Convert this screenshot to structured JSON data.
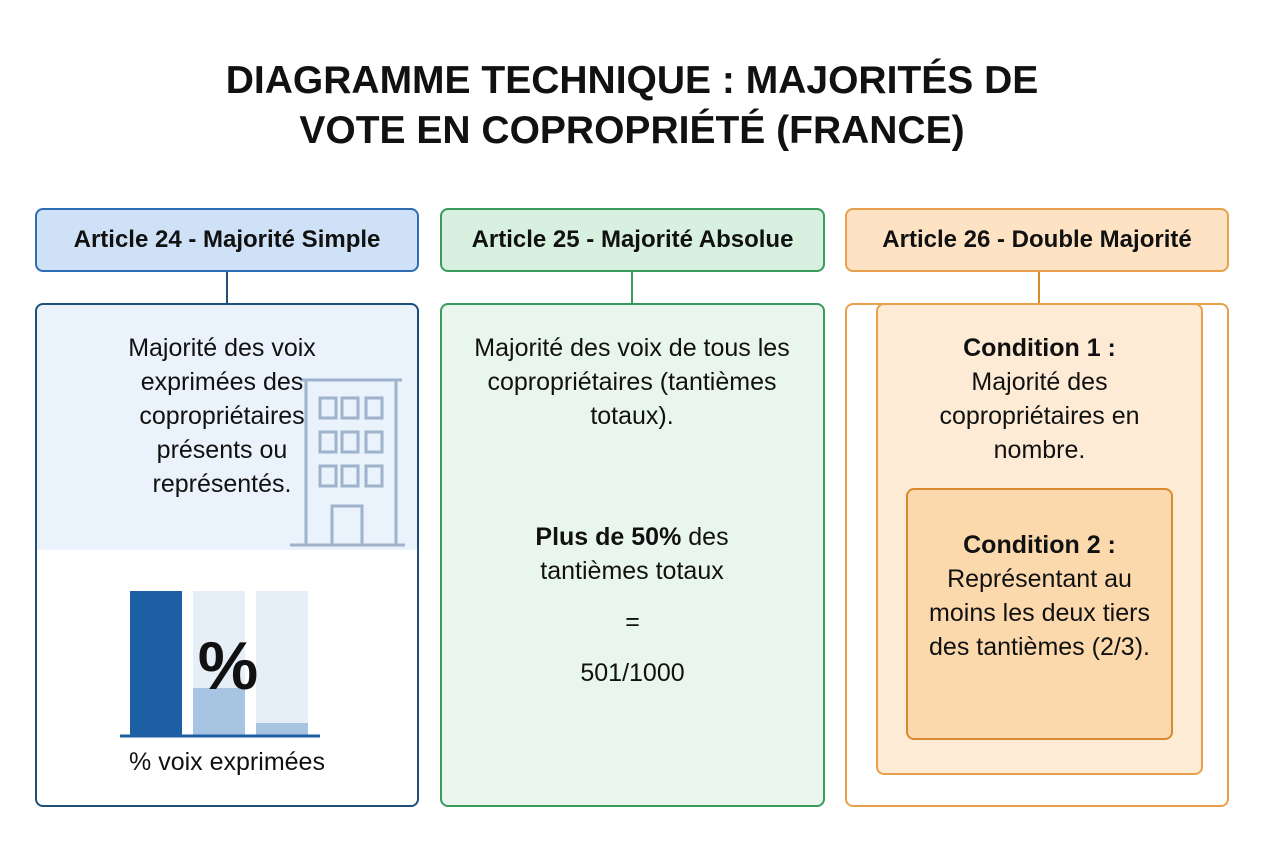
{
  "title": "DIAGRAMME TECHNIQUE : MAJORITÉS DE VOTE EN COPROPRIÉTÉ (FRANCE)",
  "columns": [
    {
      "header": "Article 24 - Majorité Simple",
      "text": "Majorité des voix exprimées des copropriétaires présents ou représentés.",
      "icon_symbol": "%",
      "caption": "% voix exprimées"
    },
    {
      "header": "Article 25 - Majorité Absolue",
      "text": "Majorité des voix de tous les copropriétaires (tantièmes totaux).",
      "threshold_bold": "Plus de 50%",
      "threshold_text": "des tantièmes totaux",
      "equals": "=",
      "threshold_value": "501/1000"
    },
    {
      "header": "Article 26 - Double Majorité",
      "condition_1": {
        "label": "Condition 1 :",
        "text": "Majorité des copropriétaires en nombre."
      },
      "condition_2": {
        "label": "Condition 2 :",
        "text": "Représentant au moins les deux tiers des tantièmes (2/3)."
      }
    }
  ]
}
